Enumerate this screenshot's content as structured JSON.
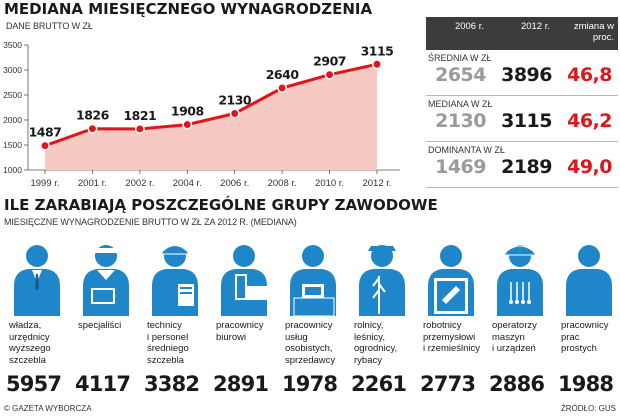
{
  "header": {
    "title": "MEDIANA MIESIĘCZNEGO WYNAGRODZENIA",
    "chart_unit": "DANE BRUTTO W ZŁ"
  },
  "chart_data": {
    "type": "area",
    "title": "MEDIANA MIESIĘCZNEGO WYNAGRODZENIA",
    "ylabel": "DANE BRUTTO W ZŁ",
    "categories": [
      "1999 r.",
      "2001 r.",
      "2002 r.",
      "2004 r.",
      "2006 r.",
      "2008 r.",
      "2010 r.",
      "2012 r."
    ],
    "values": [
      1487,
      1826,
      1821,
      1908,
      2130,
      2640,
      2907,
      3115
    ],
    "ylim": [
      1000,
      3500
    ],
    "yticks": [
      1000,
      1500,
      2000,
      2500,
      3000,
      3500
    ],
    "grid": false,
    "colors": {
      "line": "#e2141b",
      "fill": "#f6c9c3",
      "marker": "#e2141b"
    }
  },
  "table": {
    "headers": [
      "2006 r.",
      "2012 r.",
      "zmiana w proc."
    ],
    "rows": [
      {
        "label": "ŚREDNIA W ZŁ",
        "v2006": "2654",
        "v2012": "3896",
        "change": "46,8"
      },
      {
        "label": "MEDIANA W ZŁ",
        "v2006": "2130",
        "v2012": "3115",
        "change": "46,2"
      },
      {
        "label": "DOMINANTA W ZŁ",
        "v2006": "1469",
        "v2012": "2189",
        "change": "49,0"
      }
    ]
  },
  "groups_section": {
    "title": "ILE ZARABIAJĄ POSZCZEGÓLNE GRUPY ZAWODOWE",
    "subtitle": "MIESIĘCZNE WYNAGRODZENIE BRUTTO W ZŁ ZA 2012 R. (MEDIANA)",
    "groups": [
      {
        "label": "władza,\nurzędnicy\nwyższego\nszczebla",
        "value": "5957",
        "icon": "official-icon"
      },
      {
        "label": "specjaliści",
        "value": "4117",
        "icon": "specialist-icon"
      },
      {
        "label": "technicy\ni personel\nśredniego\nszczebla",
        "value": "3382",
        "icon": "technician-icon"
      },
      {
        "label": "pracownicy\nbiurowi",
        "value": "2891",
        "icon": "office-worker-icon"
      },
      {
        "label": "pracownicy\nusług\nosobistych,\nsprzedawcy",
        "value": "1978",
        "icon": "salesperson-icon"
      },
      {
        "label": "rolnicy,\nleśnicy,\nogrodnicy,\nrybacy",
        "value": "2261",
        "icon": "farmer-icon"
      },
      {
        "label": "robotnicy\nprzemysłowi\ni rzemieślnicy",
        "value": "2773",
        "icon": "craftsman-icon"
      },
      {
        "label": "operatorzy\nmaszyn\ni urządzeń",
        "value": "2886",
        "icon": "operator-icon"
      },
      {
        "label": "pracownicy\nprac\nprostych",
        "value": "1988",
        "icon": "laborer-icon"
      }
    ]
  },
  "footer": {
    "left": "© GAZETA WYBORCZA",
    "right": "ŹRÓDŁO: GUS"
  },
  "colors": {
    "accent_red": "#e2141b",
    "figure_blue": "#1f87c9",
    "table_header": "#3c3c3c"
  }
}
